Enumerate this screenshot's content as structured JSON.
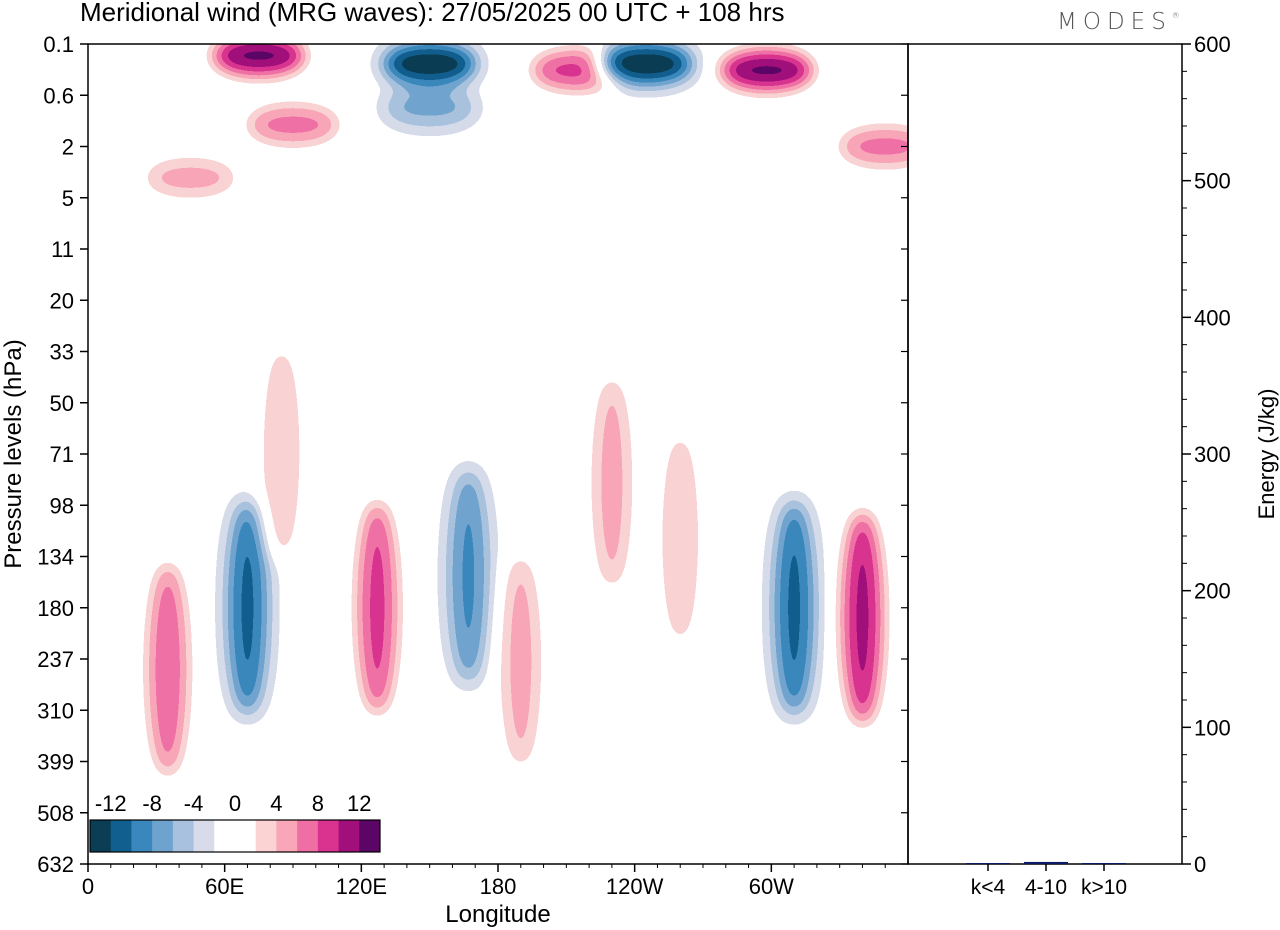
{
  "title": "Meridional wind (MRG waves):  27/05/2025  00 UTC  + 108 hrs",
  "logo": "MODES",
  "logo_mark": "®",
  "chart_data": [
    {
      "type": "heatmap",
      "xlabel": "Longitude",
      "ylabel": "Pressure levels (hPa)",
      "x_ticks": [
        "0",
        "60E",
        "120E",
        "180",
        "120W",
        "60W"
      ],
      "y_ticks": [
        "0.1",
        "0.6",
        "2",
        "5",
        "11",
        "20",
        "33",
        "50",
        "71",
        "98",
        "134",
        "180",
        "237",
        "310",
        "399",
        "508",
        "632"
      ],
      "colorbar": {
        "labels": [
          "-12",
          "-8",
          "-4",
          "0",
          "4",
          "8",
          "12"
        ],
        "colors": [
          "#0b3d55",
          "#115f8f",
          "#3a87bd",
          "#6fa3cf",
          "#a8c1de",
          "#d7dbea",
          "#ffffff",
          "#ffffff",
          "#fbd3d3",
          "#f8a6b8",
          "#ef6fa5",
          "#d9338f",
          "#a1107a",
          "#5b0566"
        ]
      },
      "features": [
        {
          "lon": 75,
          "level": 0.15,
          "value": 14
        },
        {
          "lon": 150,
          "level": 0.2,
          "value": -14
        },
        {
          "lon": 215,
          "level": 0.25,
          "value": 10
        },
        {
          "lon": 245,
          "level": 0.2,
          "value": -14
        },
        {
          "lon": 298,
          "level": 0.25,
          "value": 14
        },
        {
          "lon": 90,
          "level": 1.2,
          "value": 8
        },
        {
          "lon": 45,
          "level": 3.5,
          "value": 6
        },
        {
          "lon": 350,
          "level": 2,
          "value": 8
        },
        {
          "lon": 150,
          "level": 0.8,
          "value": -6
        },
        {
          "lon": 35,
          "level": 250,
          "value": 9
        },
        {
          "lon": 70,
          "level": 180,
          "value": -10
        },
        {
          "lon": 127,
          "level": 180,
          "value": 10
        },
        {
          "lon": 167,
          "level": 150,
          "value": -8
        },
        {
          "lon": 190,
          "level": 240,
          "value": 6
        },
        {
          "lon": 310,
          "level": 180,
          "value": -10
        },
        {
          "lon": 340,
          "level": 190,
          "value": 12
        },
        {
          "lon": 230,
          "level": 85,
          "value": 6
        },
        {
          "lon": 260,
          "level": 120,
          "value": 5
        },
        {
          "lon": 85,
          "level": 70,
          "value": 5
        }
      ]
    },
    {
      "type": "bar",
      "ylabel": "Energy (J/kg)",
      "categories": [
        "k<4",
        "4-10",
        "k>10"
      ],
      "values": [
        0.5,
        1.5,
        0.2
      ],
      "ylim": [
        0,
        600
      ],
      "y_ticks": [
        0,
        100,
        200,
        300,
        400,
        500,
        600
      ],
      "bar_color": "#0c1a66"
    }
  ]
}
